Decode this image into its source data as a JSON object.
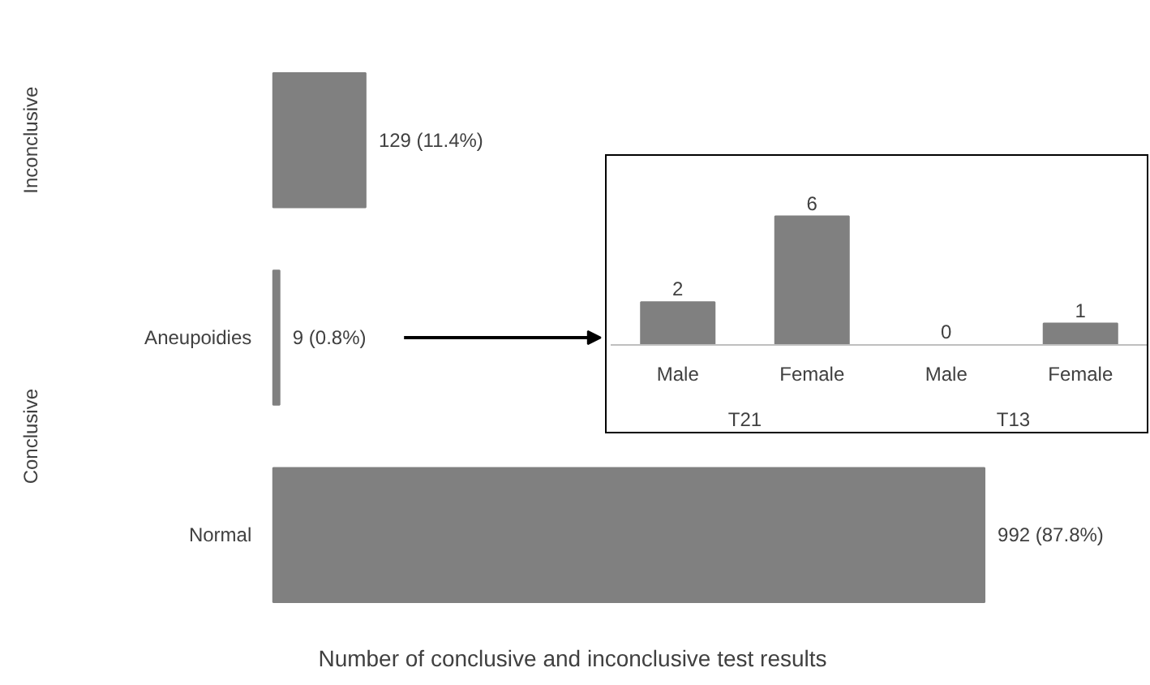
{
  "chart_data": [
    {
      "type": "bar",
      "orientation": "horizontal",
      "xlabel": "Number of conclusive and inconclusive test results",
      "categories": [
        null,
        "Aneupoidies",
        "Normal"
      ],
      "values": [
        129,
        9,
        992
      ],
      "value_labels": [
        "129 (11.4%)",
        "9 (0.8%)",
        "992 (87.8%)"
      ],
      "color": "#808080",
      "annotations": [
        "Inconclusive",
        "Conclusive"
      ],
      "grid": false
    },
    {
      "type": "bar",
      "categories": [
        "Male",
        "Female",
        "Male",
        "Female"
      ],
      "values": [
        2,
        6,
        0,
        1
      ],
      "data_labels": true,
      "color": "#808080",
      "annotations": [
        "T21",
        "T13"
      ],
      "grid": false
    }
  ]
}
